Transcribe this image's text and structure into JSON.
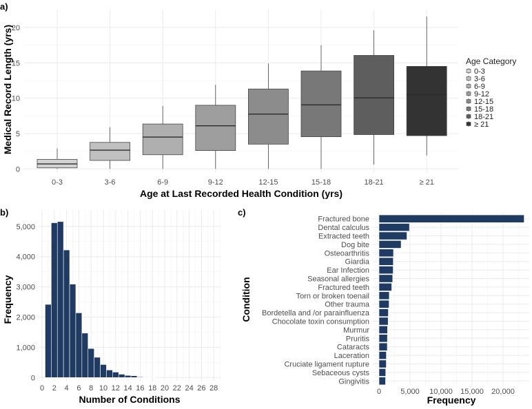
{
  "chart_data": [
    {
      "panel": "a)",
      "type": "boxplot",
      "xlabel": "Age at Last Recorded Health Condition (yrs)",
      "ylabel": "Medical Record Length (yrs)",
      "ylim": [
        0,
        22
      ],
      "yticks": [
        0,
        5,
        10,
        15,
        20
      ],
      "categories": [
        "0-3",
        "3-6",
        "6-9",
        "9-12",
        "12-15",
        "15-18",
        "18-21",
        "≥ 21"
      ],
      "boxes": [
        {
          "min": 0,
          "q1": 0.15,
          "median": 0.7,
          "q3": 1.35,
          "max": 2.9
        },
        {
          "min": 0,
          "q1": 1.2,
          "median": 2.65,
          "q3": 3.75,
          "max": 5.9
        },
        {
          "min": 0,
          "q1": 2.0,
          "median": 4.5,
          "q3": 6.35,
          "max": 8.9
        },
        {
          "min": 0,
          "q1": 2.6,
          "median": 6.1,
          "q3": 9.0,
          "max": 11.9
        },
        {
          "min": 0,
          "q1": 3.5,
          "median": 7.75,
          "q3": 11.3,
          "max": 14.9
        },
        {
          "min": 0,
          "q1": 4.55,
          "median": 9.05,
          "q3": 13.85,
          "max": 17.5
        },
        {
          "min": 0.6,
          "q1": 4.85,
          "median": 10.05,
          "q3": 16.05,
          "max": 19.6
        },
        {
          "min": 1.9,
          "q1": 4.7,
          "median": 10.5,
          "q3": 14.5,
          "max": 21.55
        }
      ],
      "fills": [
        "#d3d3d3",
        "#c0c0c0",
        "#afafaf",
        "#9e9e9e",
        "#8c8c8c",
        "#787878",
        "#5e5e5e",
        "#333333"
      ],
      "legend": {
        "title": "Age Category",
        "placement": "right",
        "entries": [
          "0-3",
          "3-6",
          "6-9",
          "9-12",
          "12-15",
          "15-18",
          "18-21",
          "≥ 21"
        ]
      },
      "grid": true
    },
    {
      "panel": "b)",
      "type": "bar",
      "xlabel": "Number of Conditions",
      "ylabel": "Frequency",
      "x": [
        1,
        2,
        3,
        4,
        5,
        6,
        7,
        8,
        9,
        10,
        11,
        12,
        13,
        14,
        15,
        16,
        17,
        18
      ],
      "values": [
        2420,
        5120,
        5160,
        4220,
        3090,
        2140,
        1470,
        960,
        670,
        430,
        250,
        180,
        110,
        70,
        60,
        20,
        15,
        5
      ],
      "xlim": [
        0,
        29
      ],
      "ylim": [
        0,
        5400
      ],
      "xticks": [
        "0",
        "2",
        "4",
        "6",
        "8",
        "10",
        "12",
        "14",
        "16",
        "18",
        "20",
        "22",
        "24",
        "26",
        "28"
      ],
      "yticks": [
        "0",
        "1,000",
        "2,000",
        "3,000",
        "4,000",
        "5,000"
      ],
      "color": "#1f3a63",
      "grid": true
    },
    {
      "panel": "c)",
      "type": "bar",
      "orientation": "horizontal",
      "xlabel": "Frequency",
      "ylabel": "Condition",
      "categories": [
        "Fractured bone",
        "Dental calculus",
        "Extracted teeth",
        "Dog bite",
        "Osteoarthritis",
        "Giardia",
        "Ear Infection",
        "Seasonal allergies",
        "Fractured teeth",
        "Torn or broken toenail",
        "Other trauma",
        "Bordetella and /or parainfluenza",
        "Chocolate toxin consumption",
        "Murmur",
        "Pruritis",
        "Cataracts",
        "Laceration",
        "Cruciate ligament rupture",
        "Sebaceous cysts",
        "Gingivitis"
      ],
      "values": [
        23400,
        4900,
        4500,
        3560,
        2330,
        2300,
        2280,
        2200,
        2050,
        1650,
        1620,
        1500,
        1470,
        1370,
        1350,
        1330,
        1180,
        1170,
        1080,
        1050
      ],
      "xlim": [
        0,
        24000
      ],
      "xticks": [
        "0",
        "5,000",
        "10,000",
        "15,000",
        "20,000"
      ],
      "color": "#1f3a63",
      "grid": true
    }
  ]
}
